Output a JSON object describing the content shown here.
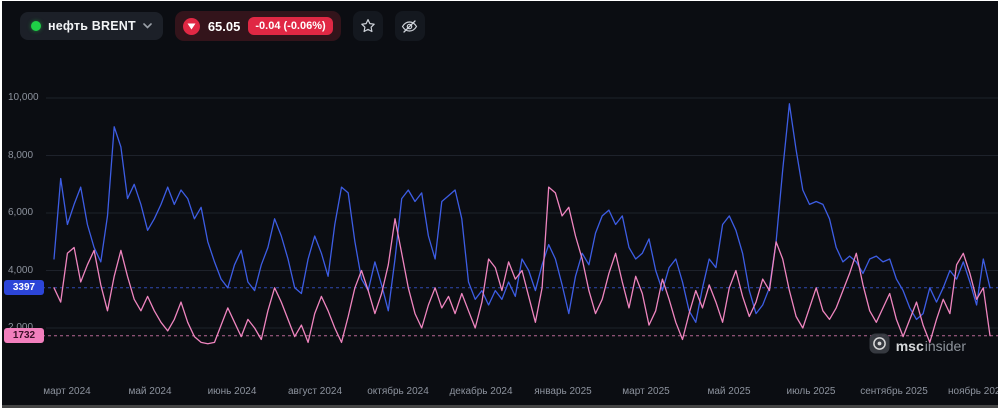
{
  "header": {
    "symbol": {
      "name": "нефть BRENT",
      "dot_color": "#1fd147"
    },
    "quote": {
      "price": "65.05",
      "change": "-0.04 (-0.06%)",
      "direction": "down",
      "accent_color": "#e02844"
    },
    "buttons": {
      "favorite_icon": "star-icon",
      "hide_icon": "eye-off-icon"
    }
  },
  "watermark": {
    "bold": "msc",
    "light": "insider"
  },
  "chart_data": {
    "type": "line",
    "title": "",
    "xlabel": "",
    "ylabel": "",
    "ylim": [
      1000,
      10500
    ],
    "grid": "horizontal",
    "legend": "none",
    "yticks": [
      {
        "label": "10,000",
        "value": 10000
      },
      {
        "label": "8,000",
        "value": 8000
      },
      {
        "label": "6,000",
        "value": 6000
      },
      {
        "label": "4,000",
        "value": 4000
      },
      {
        "label": "2,000",
        "value": 2000
      }
    ],
    "xticks": [
      "март 2024",
      "май 2024",
      "июнь 2024",
      "август 2024",
      "октябрь 2024",
      "декабрь 2024",
      "январь 2025",
      "март 2025",
      "май 2025",
      "июль 2025",
      "сентябрь 2025",
      "ноябрь 2025"
    ],
    "series": [
      {
        "name": "blue-series",
        "color": "#3d5de4",
        "label_bg": "#2c45d8",
        "label_text_color": "#ffffff",
        "last_label": "3397",
        "last_value": 3397,
        "values": [
          4400,
          7200,
          5600,
          6300,
          6900,
          5600,
          4800,
          4300,
          5900,
          9000,
          8300,
          6500,
          7000,
          6300,
          5400,
          5800,
          6300,
          6900,
          6300,
          6800,
          6500,
          5800,
          6200,
          5000,
          4300,
          3700,
          3400,
          4200,
          4700,
          3600,
          3300,
          4200,
          4800,
          5800,
          5200,
          4400,
          3400,
          3200,
          4400,
          5200,
          4600,
          3800,
          5600,
          6900,
          6700,
          5000,
          3700,
          3300,
          4300,
          3500,
          2600,
          4400,
          6500,
          6800,
          6400,
          6700,
          5200,
          4400,
          6400,
          6600,
          6800,
          5800,
          3600,
          3000,
          3300,
          2800,
          3300,
          3000,
          3600,
          3100,
          4400,
          4000,
          3300,
          4200,
          4900,
          4400,
          3500,
          2500,
          3800,
          4600,
          4200,
          5300,
          5900,
          6100,
          5600,
          5900,
          4800,
          4400,
          4600,
          5100,
          4000,
          3300,
          4100,
          4400,
          3600,
          2600,
          2200,
          3400,
          4400,
          4100,
          5600,
          5900,
          5400,
          4600,
          3300,
          2500,
          2800,
          3400,
          5000,
          7500,
          9800,
          8200,
          6800,
          6300,
          6400,
          6300,
          5800,
          4800,
          4300,
          4500,
          4300,
          3900,
          4400,
          4500,
          4300,
          4400,
          3700,
          3300,
          2700,
          2300,
          2500,
          3400,
          2900,
          3400,
          4000,
          3700,
          4300,
          3600,
          2800,
          4400,
          3397
        ]
      },
      {
        "name": "pink-series",
        "color": "#ef85bf",
        "label_bg": "#f27fbd",
        "label_text_color": "#3c1028",
        "last_label": "1732",
        "last_value": 1732,
        "values": [
          3400,
          2900,
          4600,
          4800,
          3600,
          4200,
          4700,
          3500,
          2600,
          3800,
          4700,
          3800,
          3000,
          2600,
          3100,
          2600,
          2200,
          1900,
          2300,
          2900,
          2200,
          1700,
          1500,
          1450,
          1500,
          2100,
          2700,
          2200,
          1700,
          2300,
          2000,
          1600,
          2600,
          3400,
          2900,
          2300,
          1700,
          2100,
          1500,
          2500,
          3100,
          2600,
          2000,
          1500,
          2400,
          3400,
          4000,
          3300,
          2500,
          3200,
          4200,
          5800,
          4600,
          3400,
          2500,
          2000,
          2800,
          3400,
          2700,
          3100,
          2500,
          3200,
          2600,
          2000,
          2900,
          4400,
          4100,
          3300,
          4300,
          3700,
          4000,
          3100,
          2200,
          3400,
          6900,
          6700,
          5900,
          6200,
          5200,
          4400,
          3300,
          2500,
          3000,
          3900,
          4600,
          3600,
          2700,
          3800,
          3200,
          2100,
          2600,
          3700,
          3000,
          2200,
          1600,
          2500,
          3300,
          2700,
          3500,
          2900,
          2200,
          3400,
          4000,
          3100,
          2400,
          2900,
          3700,
          3300,
          5000,
          4400,
          3300,
          2400,
          2000,
          2700,
          3400,
          2600,
          2300,
          2700,
          3300,
          3900,
          4600,
          3500,
          2600,
          2200,
          2700,
          3200,
          2300,
          1700,
          2300,
          2900,
          2100,
          1500,
          2300,
          3000,
          2500,
          4200,
          4600,
          3900,
          3000,
          3400,
          1732
        ]
      }
    ]
  }
}
